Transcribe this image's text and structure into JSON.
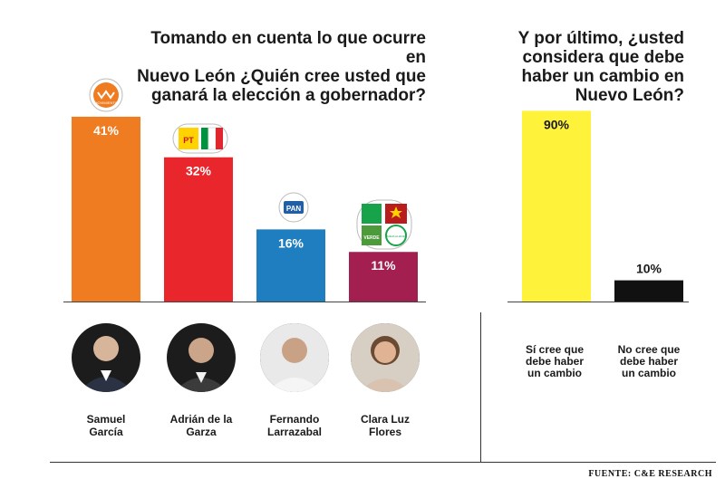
{
  "question_left": "Tomando en cuenta lo que ocurre en\nNuevo León ¿Quién cree usted que\nganará la elección a gobernador?",
  "question_right": "Y por último, ¿usted\nconsidera que debe\nhaber un cambio en\nNuevo León?",
  "source": "FUENTE: C&E RESEARCH",
  "chart_data": [
    {
      "type": "bar",
      "title": "Tomando en cuenta lo que ocurre en Nuevo León ¿Quién cree usted que ganará la elección a gobernador?",
      "categories": [
        "Samuel García",
        "Adrián de la Garza",
        "Fernando Larrazabal",
        "Clara Luz Flores"
      ],
      "category_lines": [
        [
          "Samuel",
          "García"
        ],
        [
          "Adrián de la",
          "Garza"
        ],
        [
          "Fernando",
          "Larrazabal"
        ],
        [
          "Clara Luz",
          "Flores"
        ]
      ],
      "values": [
        41,
        32,
        16,
        11
      ],
      "value_labels": [
        "41%",
        "32%",
        "16%",
        "11%"
      ],
      "colors": [
        "#f07c22",
        "#e8262b",
        "#1f7ebf",
        "#a21f4f"
      ],
      "party_logos": [
        [
          "MC"
        ],
        [
          "PT",
          "PRI"
        ],
        [
          "PAN"
        ],
        [
          "PVEM",
          "MORENA",
          "NA"
        ]
      ],
      "logo_texts": {
        "MC": "MOVIMIENTO",
        "PT": "PT",
        "PAN": "PAN",
        "PVEM": "VERDE",
        "NA": "NUEVA ALIANZA"
      },
      "ylim": [
        0,
        45
      ],
      "grid": false,
      "legend": "none"
    },
    {
      "type": "bar",
      "title": "Y por último, ¿usted considera que debe haber un cambio en Nuevo León?",
      "categories": [
        "Sí cree que debe haber un cambio",
        "No cree que debe haber un cambio"
      ],
      "category_lines": [
        [
          "Sí cree que",
          "debe haber",
          "un cambio"
        ],
        [
          "No cree que",
          "debe haber",
          "un cambio"
        ]
      ],
      "values": [
        90,
        10
      ],
      "value_labels": [
        "90%",
        "10%"
      ],
      "colors": [
        "#fff23a",
        "#111111"
      ],
      "ylim": [
        0,
        100
      ],
      "grid": false,
      "legend": "none"
    }
  ]
}
